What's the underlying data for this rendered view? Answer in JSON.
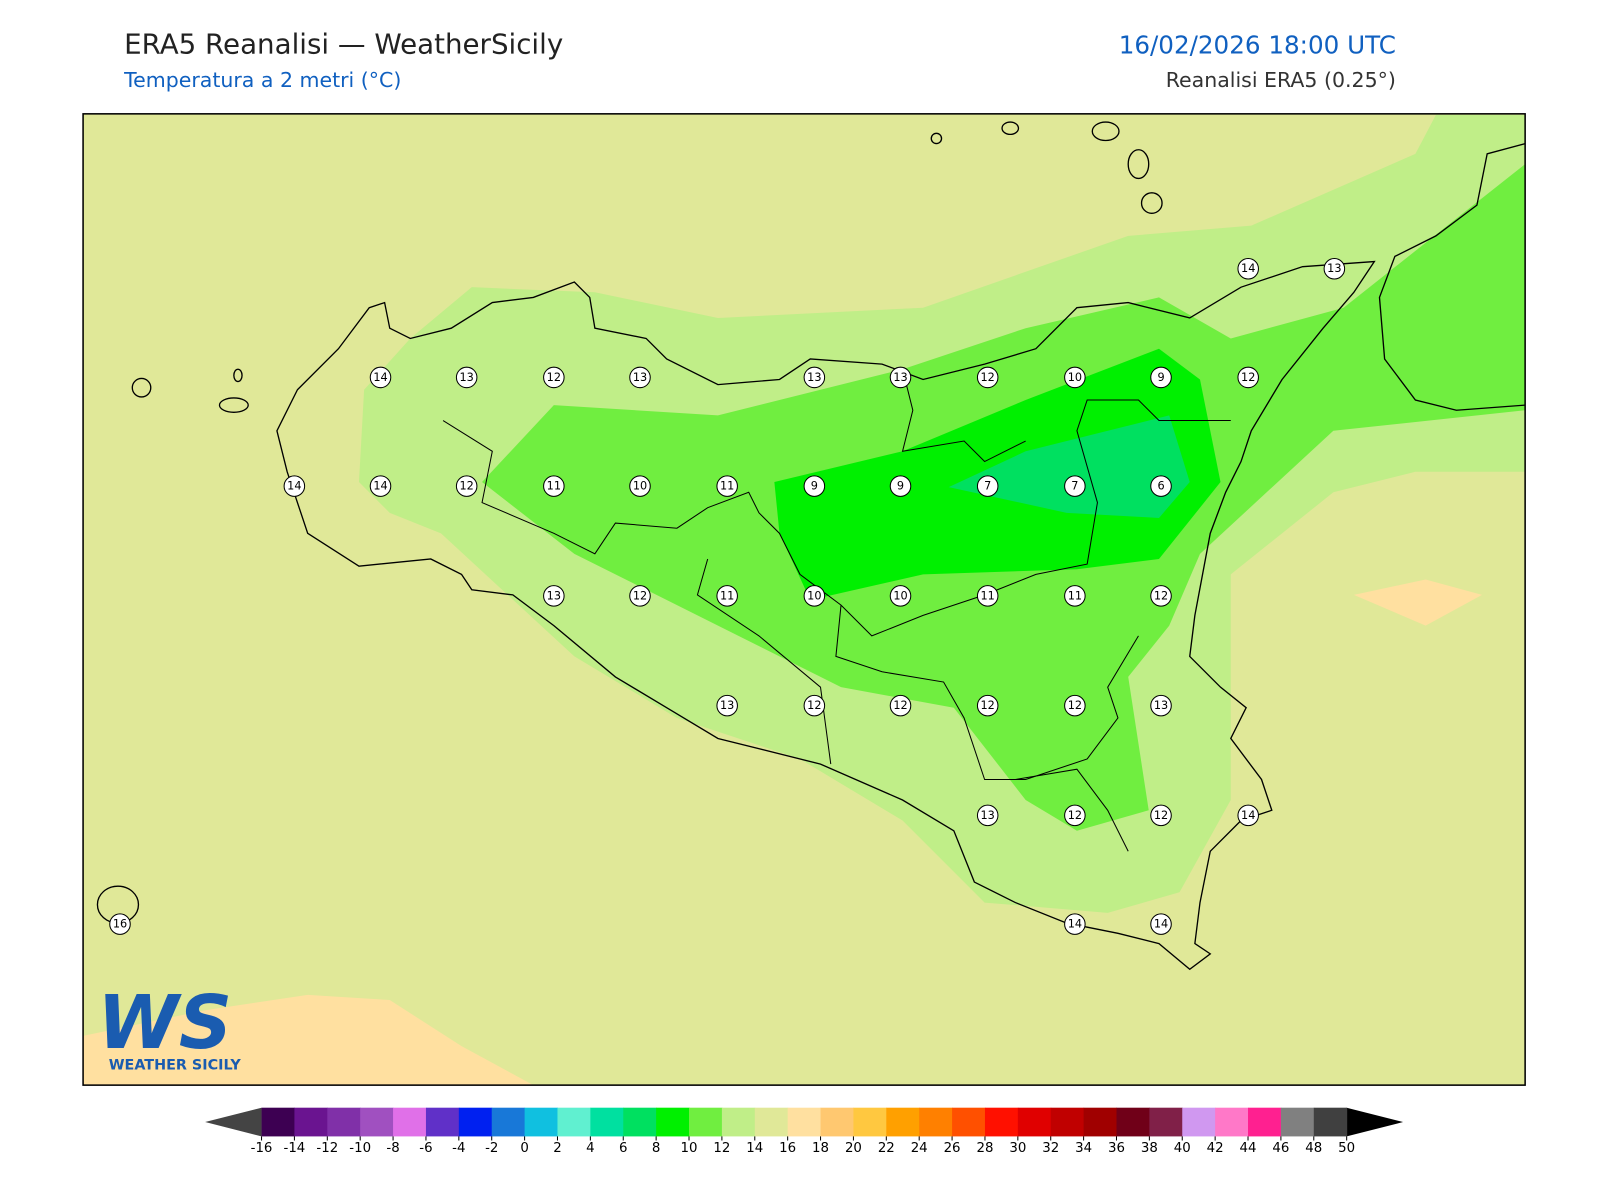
{
  "header": {
    "title": "ERA5 Reanalisi — WeatherSicily",
    "subtitle": "Temperatura a 2 metri (°C)",
    "datetime": "16/02/2026 18:00 UTC",
    "source": "Reanalisi ERA5 (0.25°)"
  },
  "stations": [
    14,
    13,
    14,
    13,
    12,
    13,
    13,
    13,
    12,
    10,
    9,
    12,
    14,
    14,
    12,
    11,
    10,
    11,
    9,
    9,
    7,
    7,
    6,
    13,
    12,
    11,
    10,
    10,
    11,
    11,
    12,
    13,
    12,
    12,
    12,
    12,
    13,
    13,
    12,
    12,
    14,
    16,
    14,
    14
  ],
  "colorbar": {
    "ticks": [
      -16,
      -14,
      -12,
      -10,
      -8,
      -6,
      -4,
      -2,
      0,
      2,
      4,
      6,
      8,
      10,
      12,
      14,
      16,
      18,
      20,
      22,
      24,
      26,
      28,
      30,
      32,
      34,
      36,
      38,
      40,
      42,
      44,
      46,
      48,
      50
    ],
    "colors": [
      "#3d0052",
      "#6a1490",
      "#8030a8",
      "#a050c0",
      "#e070e8",
      "#6030c8",
      "#0020f0",
      "#1878d8",
      "#10c0e0",
      "#60f0d0",
      "#00e0a0",
      "#00e060",
      "#00f000",
      "#70ee40",
      "#c0ee88",
      "#e0e898",
      "#ffe0a0",
      "#ffc870",
      "#ffc840",
      "#ffa000",
      "#ff8000",
      "#ff5000",
      "#ff1000",
      "#e00000",
      "#c00000",
      "#a00000",
      "#700018",
      "#802048",
      "#d098f0",
      "#ff78c8",
      "#ff2090",
      "#808080",
      "#404040"
    ],
    "under": "#444444",
    "over": "#000000"
  },
  "logo": {
    "mark": "WS",
    "text": "WEATHER SICILY"
  }
}
